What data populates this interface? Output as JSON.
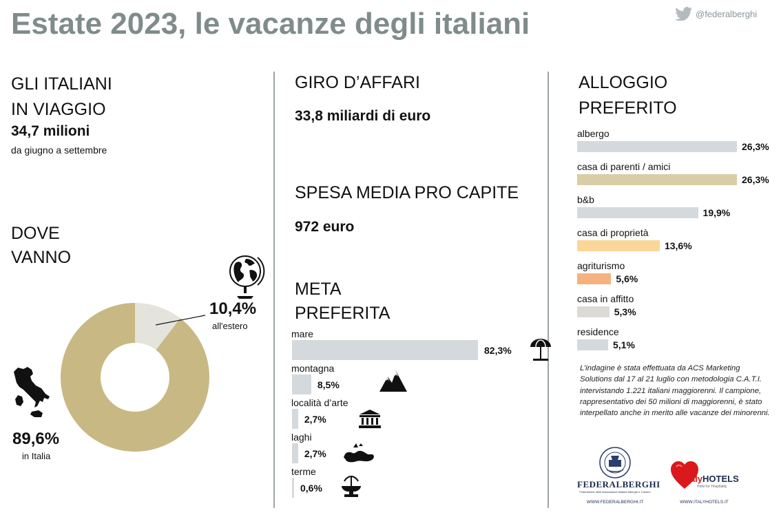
{
  "header": {
    "title": "Estate 2023, le vacanze degli italiani",
    "handle": "@federalberghi"
  },
  "viaggio": {
    "heading_line1": "GLI ITALIANI",
    "heading_line2": "IN VIAGGIO",
    "value": "34,7 milioni",
    "period": "da giugno a settembre"
  },
  "dove": {
    "heading_line1": "DOVE",
    "heading_line2": "VANNO"
  },
  "affari": {
    "heading": "GIRO D’AFFARI",
    "value": "33,8 miliardi di euro"
  },
  "spesa": {
    "heading": "SPESA MEDIA PRO CAPITE",
    "value": "972 euro"
  },
  "meta": {
    "heading_line1": "META",
    "heading_line2": "PREFERITA"
  },
  "alloggio": {
    "heading_line1": "ALLOGGIO",
    "heading_line2": "PREFERITO"
  },
  "note": "L’indagine è stata effettuata da ACS Marketing Solutions dal 17 al 21 luglio con metodologia C.A.T.I. intervistando 1.221 italiani maggiorenni. Il campione, rappresentativo dei 50 milioni di maggiorenni, è stato interpellato anche in merito alle vacanze dei minorenni.",
  "logos": {
    "federalberghi_arc": "L'OSPITALITÀ ITALIANA",
    "federalberghi_name": "FEDERALBERGHI",
    "federalberghi_sub1": "Federazione delle Associazioni Italiane Alberghi e Turismo",
    "federalberghi_url": "WWW.FEDERALBERGHI.IT",
    "italyhotels_name_a": "italy",
    "italyhotels_name_b": "HOTELS",
    "italyhotels_tag": "Hotel for Hospitality",
    "italyhotels_url": "WWW.ITALYHOTELS.IT"
  },
  "colors": {
    "title": "#808b8b",
    "donut_italia": "#c8b883",
    "donut_estero": "#e4e3dc",
    "bar_grey": "#d3d9dc",
    "bar_tan": "#d8cda5",
    "bar_yellow": "#fbd699",
    "bar_orange": "#f6b27e",
    "bar_beige": "#dcdad5",
    "divider": "#9aa3a8"
  },
  "chart_data": [
    {
      "type": "pie",
      "categories": [
        "in Italia",
        "all'estero"
      ],
      "values": [
        89.6,
        10.4
      ],
      "labels": [
        "89,6%",
        "10,4%"
      ],
      "colors": [
        "#c8b883",
        "#e4e3dc"
      ],
      "style": "donut"
    },
    {
      "type": "bar",
      "orientation": "horizontal",
      "categories": [
        "mare",
        "montagna",
        "località d’arte",
        "laghi",
        "terme"
      ],
      "values": [
        82.3,
        8.5,
        2.7,
        2.7,
        0.6
      ],
      "labels": [
        "82,3%",
        "8,5%",
        "2,7%",
        "2,7%",
        "0,6%"
      ],
      "icons": [
        "umbrella-icon",
        "mountains-icon",
        "temple-icon",
        "lake-icon",
        "fountain-icon"
      ],
      "color": "#d3d9dc"
    },
    {
      "type": "bar",
      "orientation": "horizontal",
      "categories": [
        "albergo",
        "casa di parenti / amici",
        "b&b",
        "casa di proprietà",
        "agriturismo",
        "casa in affitto",
        "residence"
      ],
      "values": [
        26.3,
        26.3,
        19.9,
        13.6,
        5.6,
        5.3,
        5.1
      ],
      "labels": [
        "26,3%",
        "26,3%",
        "19,9%",
        "13,6%",
        "5,6%",
        "5,3%",
        "5,1%"
      ],
      "colors": [
        "#d3d9dc",
        "#d8cda5",
        "#d3d9dc",
        "#fbd699",
        "#f6b27e",
        "#dcdad5",
        "#d3d9dc"
      ]
    }
  ]
}
